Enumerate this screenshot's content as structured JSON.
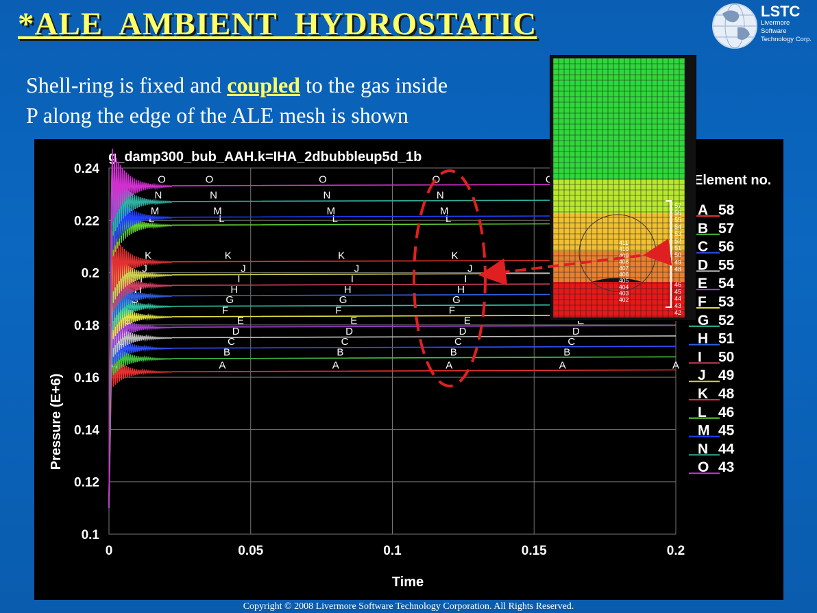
{
  "slide": {
    "title": "*ALE  AMBIENT  HYDROSTATIC",
    "line1_before": "Shell-ring is fixed and ",
    "line1_highlight": "coupled",
    "line1_after": " to the gas inside",
    "line2": "P along the edge of the ALE mesh is shown",
    "copyright": "Copyright © 2008 Livermore Software Technology Corporation.  All Rights Reserved."
  },
  "logo": {
    "name": "LSTC",
    "line1": "Livermore Software",
    "line2": "Technology Corp.",
    "icon": "globe-icon"
  },
  "colors": {
    "title": "#ffff66",
    "background": "#0a62b8",
    "plot_background": "#000000",
    "highlight_ellipse": "#e02020",
    "arrow": "#e02020"
  },
  "mesh_figure": {
    "element_labels": [
      "57",
      "56",
      "55",
      "54",
      "53",
      "52",
      "51",
      "50",
      "49",
      "48",
      "46",
      "45",
      "44",
      "43",
      "42"
    ],
    "inner_labels": [
      "411",
      "410",
      "409",
      "408",
      "407",
      "406",
      "405",
      "404",
      "403",
      "402"
    ]
  },
  "chart_data": {
    "type": "line",
    "title": "g_damp300_bub_AAH.k=IHA_2dbubbleup5d_1b",
    "xlabel": "Time",
    "ylabel": "Pressure (E+6)",
    "xlim": [
      0,
      0.2
    ],
    "ylim": [
      0.1,
      0.24
    ],
    "xticks": [
      "0",
      "0.05",
      "0.1",
      "0.15",
      "0.2"
    ],
    "yticks": [
      "0.1",
      "0.12",
      "0.14",
      "0.16",
      "0.18",
      "0.2",
      "0.22",
      "0.24"
    ],
    "grid": true,
    "legend_title": "Element no.",
    "legend_position": "right",
    "series": [
      {
        "name": "A",
        "element": "58",
        "color": "#e83030",
        "value": 0.162
      },
      {
        "name": "B",
        "element": "57",
        "color": "#40c040",
        "value": 0.167
      },
      {
        "name": "C",
        "element": "56",
        "color": "#3050ff",
        "value": 0.171
      },
      {
        "name": "D",
        "element": "55",
        "color": "#c0c0c0",
        "value": 0.175
      },
      {
        "name": "E",
        "element": "54",
        "color": "#a040d0",
        "value": 0.179
      },
      {
        "name": "F",
        "element": "53",
        "color": "#e0e040",
        "value": 0.183
      },
      {
        "name": "G",
        "element": "52",
        "color": "#30c0a0",
        "value": 0.187
      },
      {
        "name": "H",
        "element": "51",
        "color": "#3060e0",
        "value": 0.191
      },
      {
        "name": "I",
        "element": "50",
        "color": "#d04060",
        "value": 0.195
      },
      {
        "name": "J",
        "element": "49",
        "color": "#d0d050",
        "value": 0.199
      },
      {
        "name": "K",
        "element": "48",
        "color": "#e03030",
        "value": 0.204
      },
      {
        "name": "L",
        "element": "46",
        "color": "#60d030",
        "value": 0.218
      },
      {
        "name": "M",
        "element": "45",
        "color": "#2040ff",
        "value": 0.221
      },
      {
        "name": "N",
        "element": "44",
        "color": "#30b0a0",
        "value": 0.227
      },
      {
        "name": "O",
        "element": "43",
        "color": "#d030d0",
        "value": 0.233
      }
    ]
  }
}
